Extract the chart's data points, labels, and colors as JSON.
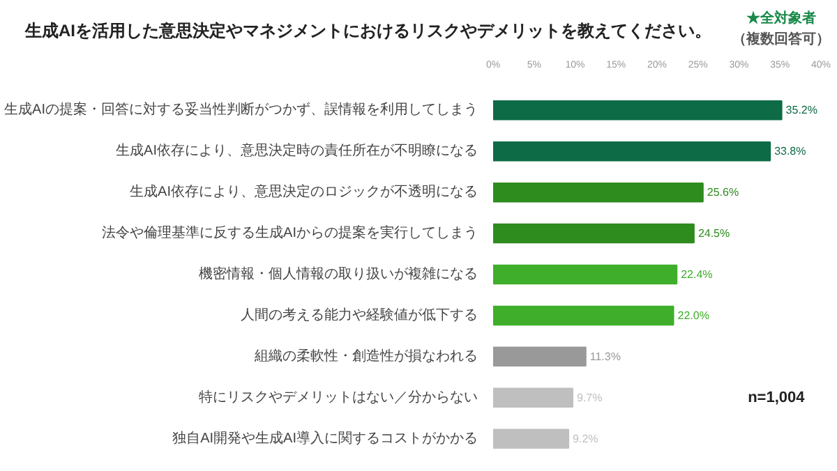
{
  "chart_data": {
    "type": "bar",
    "orientation": "horizontal",
    "title": "生成AIを活用した意思決定やマネジメントにおけるリスクやデメリットを教えてください。",
    "annotations": [
      "★全対象者",
      "（複数回答可）",
      "n=1,004"
    ],
    "categories": [
      "生成AIの提案・回答に対する妥当性判断がつかず、誤情報を利用してしまう",
      "生成AI依存により、意思決定時の責任所在が不明瞭になる",
      "生成AI依存により、意思決定のロジックが不透明になる",
      "法令や倫理基準に反する生成AIからの提案を実行してしまう",
      "機密情報・個人情報の取り扱いが複雑になる",
      "人間の考える能力や経験値が低下する",
      "組織の柔軟性・創造性が損なわれる",
      "特にリスクやデメリットはない／分からない",
      "独自AI開発や生成AI導入に関するコストがかかる"
    ],
    "values": [
      35.2,
      33.8,
      25.6,
      24.5,
      22.4,
      22.0,
      11.3,
      9.7,
      9.2
    ],
    "value_labels": [
      "35.2%",
      "33.8%",
      "25.6%",
      "24.5%",
      "22.4%",
      "22.0%",
      "11.3%",
      "9.7%",
      "9.2%"
    ],
    "colors": [
      "#0d6b45",
      "#0d6b45",
      "#2e8b1e",
      "#2e8b1e",
      "#3fae2a",
      "#3fae2a",
      "#999999",
      "#bfbfbf",
      "#bfbfbf"
    ],
    "xlim": [
      0,
      40
    ],
    "xticks": [
      {
        "value": 0,
        "label": "0%"
      },
      {
        "value": 5,
        "label": "5%"
      },
      {
        "value": 10,
        "label": "10%"
      },
      {
        "value": 15,
        "label": "15%"
      },
      {
        "value": 20,
        "label": "20%"
      },
      {
        "value": 25,
        "label": "25%"
      },
      {
        "value": 30,
        "label": "30%"
      },
      {
        "value": 35,
        "label": "35%"
      },
      {
        "value": 40,
        "label": "40%"
      }
    ],
    "grid": false
  }
}
